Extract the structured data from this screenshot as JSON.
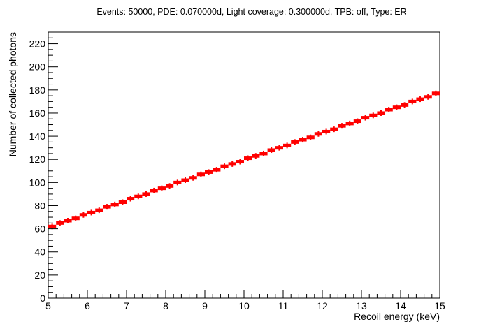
{
  "chart_data": {
    "type": "scatter",
    "title": "Events: 50000, PDE: 0.070000d, Light coverage: 0.300000d, TPB: off, Type: ER",
    "xlabel": "Recoil energy (keV)",
    "ylabel": "Number of collected photons",
    "xlim": [
      5,
      15
    ],
    "ylim": [
      0,
      230
    ],
    "xticks": [
      "5",
      "6",
      "7",
      "8",
      "9",
      "10",
      "11",
      "12",
      "13",
      "14",
      "15"
    ],
    "yticks": [
      "0",
      "20",
      "40",
      "60",
      "80",
      "100",
      "120",
      "140",
      "160",
      "180",
      "200",
      "220"
    ],
    "grid": false,
    "legend": "none",
    "series": [
      {
        "color": "#ff0000",
        "marker": "steps with error bars",
        "x_start": 5.0,
        "x_end": 15.0,
        "y_start": 61,
        "y_end": 178,
        "bin_width": 0.2
      }
    ]
  }
}
